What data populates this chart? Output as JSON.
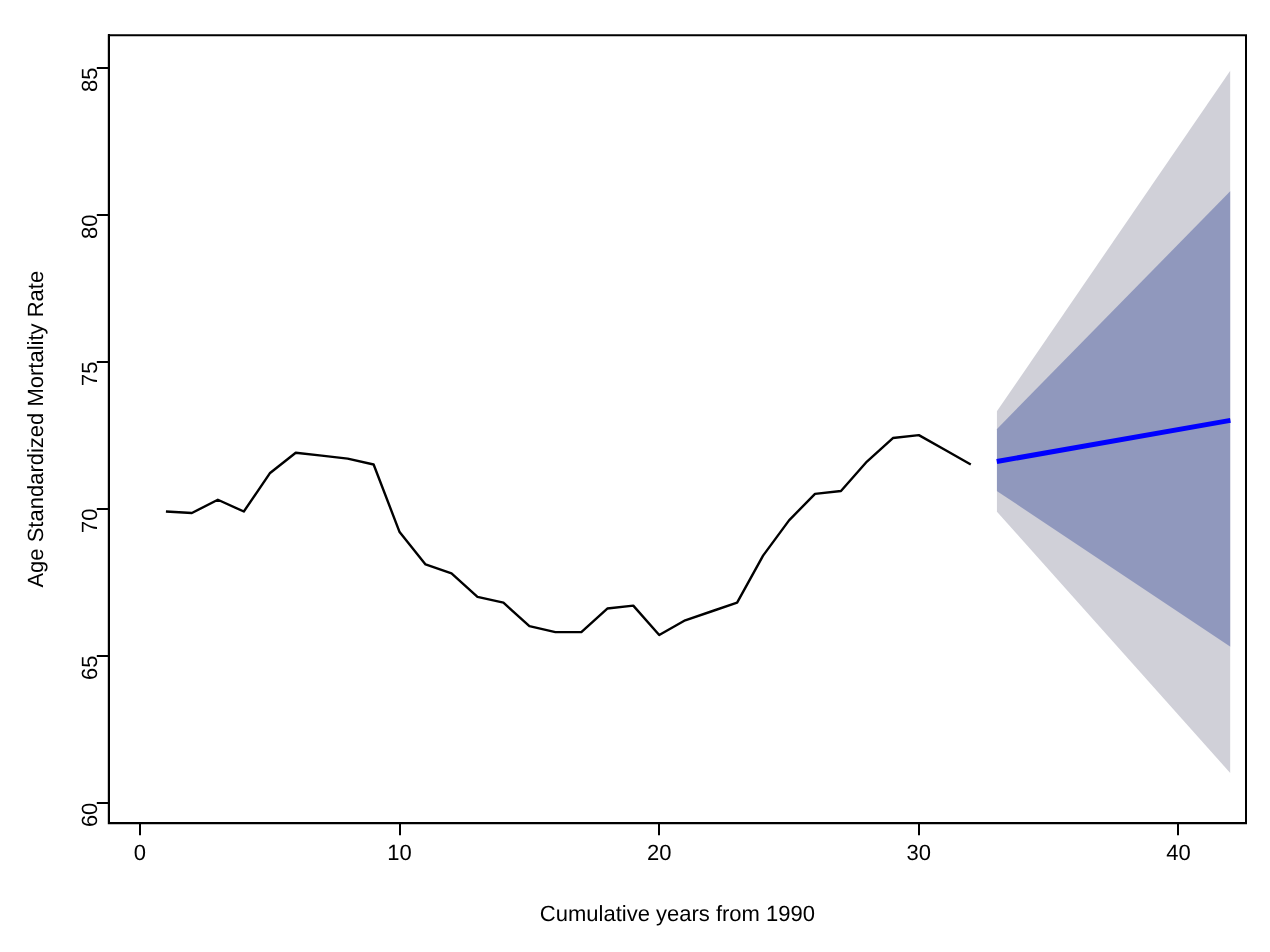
{
  "chart_data": {
    "type": "line",
    "xlabel": "Cumulative years from 1990",
    "ylabel": "Age Standardized Mortality Rate",
    "xlim": [
      -1.2,
      42.6
    ],
    "ylim": [
      59.3,
      86.1
    ],
    "xticks": [
      0,
      10,
      20,
      30,
      40
    ],
    "yticks": [
      60,
      65,
      70,
      75,
      80,
      85
    ],
    "grid": false,
    "legend": false,
    "series": [
      {
        "color": "#d0d0d8",
        "x": [
          33,
          42
        ],
        "values": [
          null,
          null
        ],
        "lower": [
          69.9,
          61.0
        ],
        "upper": [
          73.3,
          84.9
        ]
      },
      {
        "color": "#9098bd",
        "x": [
          33,
          42
        ],
        "values": [
          null,
          null
        ],
        "lower": [
          70.6,
          65.3
        ],
        "upper": [
          72.7,
          80.8
        ]
      },
      {
        "color": "#000000",
        "x": [
          1,
          2,
          3,
          4,
          5,
          6,
          7,
          8,
          9,
          10,
          11,
          12,
          13,
          14,
          15,
          16,
          17,
          18,
          19,
          20,
          21,
          22,
          23,
          24,
          25,
          26,
          27,
          28,
          29,
          30,
          31,
          32
        ],
        "values": [
          69.9,
          69.85,
          70.3,
          69.9,
          71.2,
          71.9,
          71.8,
          71.7,
          71.5,
          69.2,
          68.1,
          67.8,
          67.0,
          66.8,
          66.0,
          65.8,
          65.8,
          66.6,
          66.7,
          65.7,
          66.2,
          66.5,
          66.8,
          68.4,
          69.6,
          70.5,
          70.6,
          71.6,
          72.4,
          72.5,
          72.0,
          71.5
        ]
      },
      {
        "color": "#0000ff",
        "x": [
          33,
          42
        ],
        "values": [
          71.6,
          73.0
        ]
      }
    ]
  }
}
